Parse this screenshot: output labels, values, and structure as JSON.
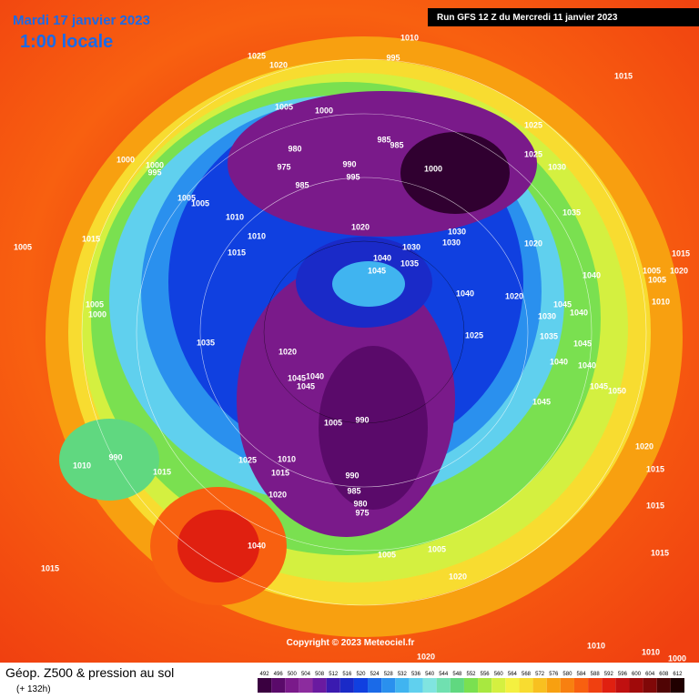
{
  "header": {
    "date": "Mardi 17 janvier 2023",
    "time": "1:00 locale",
    "run": "Run GFS 12 Z du Mercredi 11 janvier 2023"
  },
  "footer": {
    "title": "Géop. Z500 & pression au sol",
    "lead": "(+ 132h)",
    "copyright": "Copyright © 2023 Meteociel.fr"
  },
  "scale": {
    "labels": [
      492,
      496,
      500,
      504,
      508,
      512,
      516,
      520,
      524,
      528,
      532,
      536,
      540,
      544,
      548,
      552,
      556,
      560,
      564,
      568,
      572,
      576,
      580,
      584,
      588,
      592,
      596,
      600,
      604,
      608,
      612
    ],
    "colors": [
      "#3a0040",
      "#5a0a6a",
      "#7a1a8a",
      "#8c2c9e",
      "#6a1aa0",
      "#3a1ab0",
      "#1a2ac8",
      "#1040e0",
      "#1a6ae8",
      "#2a90ee",
      "#40b4f0",
      "#60d0ee",
      "#80e4e0",
      "#70e0b0",
      "#60d880",
      "#7ae050",
      "#a8e840",
      "#d4f040",
      "#f4f040",
      "#f8dc30",
      "#f8c020",
      "#f8a010",
      "#f88010",
      "#f86010",
      "#f04010",
      "#e02010",
      "#c01010",
      "#a00a0a",
      "#800808",
      "#500404",
      "#200000"
    ]
  },
  "isobars": [
    1010,
    1025,
    1020,
    995,
    1015,
    1005,
    1000,
    980,
    975,
    985,
    990,
    995,
    985,
    985,
    1000,
    1025,
    1025,
    1030,
    1000,
    1000,
    995,
    1005,
    1005,
    1010,
    1010,
    1015,
    1020,
    1030,
    1030,
    1030,
    1035,
    1020,
    1040,
    1035,
    1045,
    1040,
    1020,
    1040,
    1005,
    1015,
    1005,
    1000,
    1035,
    1020,
    1045,
    1040,
    1045,
    1005,
    990,
    1010,
    1015,
    1020,
    1025,
    990,
    985,
    980,
    975,
    1005,
    1005,
    1020,
    1010,
    990,
    1015,
    1040,
    1015,
    1020,
    1015,
    1015,
    1015,
    1020,
    1045,
    1045,
    1050,
    1040,
    1040,
    1045,
    1035,
    1030,
    1040,
    1045,
    1005,
    1005,
    1020,
    1015,
    1010,
    1010,
    1010,
    1025,
    1000
  ]
}
